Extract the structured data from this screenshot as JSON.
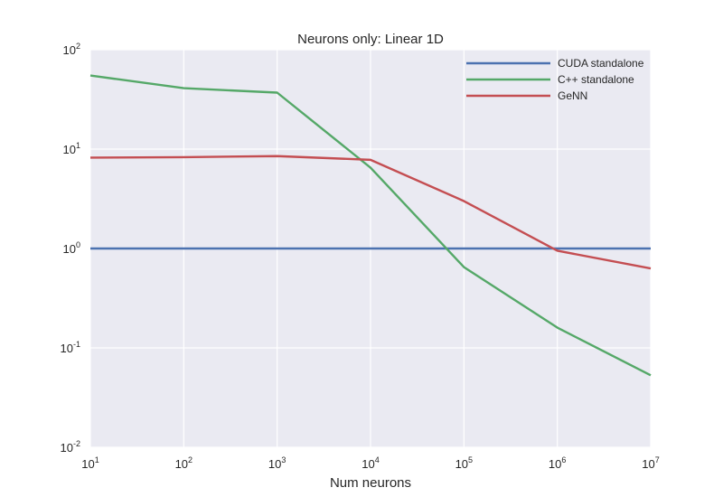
{
  "chart_data": {
    "type": "line",
    "title": "Neurons only: Linear 1D",
    "xlabel": "Num neurons",
    "ylabel": "",
    "xscale": "log",
    "yscale": "log",
    "xlim": [
      10,
      10000000
    ],
    "ylim": [
      0.01,
      100
    ],
    "xticks": [
      {
        "base": "10",
        "exp": "1",
        "value": 10
      },
      {
        "base": "10",
        "exp": "2",
        "value": 100
      },
      {
        "base": "10",
        "exp": "3",
        "value": 1000
      },
      {
        "base": "10",
        "exp": "4",
        "value": 10000
      },
      {
        "base": "10",
        "exp": "5",
        "value": 100000
      },
      {
        "base": "10",
        "exp": "6",
        "value": 1000000
      },
      {
        "base": "10",
        "exp": "7",
        "value": 10000000
      }
    ],
    "yticks": [
      {
        "base": "10",
        "exp": "-2",
        "value": 0.01
      },
      {
        "base": "10",
        "exp": "-1",
        "value": 0.1
      },
      {
        "base": "10",
        "exp": "0",
        "value": 1
      },
      {
        "base": "10",
        "exp": "1",
        "value": 10
      },
      {
        "base": "10",
        "exp": "2",
        "value": 100
      }
    ],
    "x": [
      10,
      100,
      1000,
      10000,
      100000,
      1000000,
      10000000
    ],
    "grid": true,
    "legend_position": "top-right",
    "background": "#EAEAF2",
    "series": [
      {
        "name": "CUDA standalone",
        "color": "#4C72B0",
        "values": [
          1.0,
          1.0,
          1.0,
          1.0,
          1.0,
          1.0,
          1.0
        ]
      },
      {
        "name": "C++ standalone",
        "color": "#55A868",
        "values": [
          55,
          41,
          37,
          6.5,
          0.65,
          0.16,
          0.053
        ]
      },
      {
        "name": "GeNN",
        "color": "#C44E52",
        "values": [
          8.2,
          8.3,
          8.5,
          7.8,
          3.0,
          0.95,
          0.63
        ]
      }
    ]
  }
}
